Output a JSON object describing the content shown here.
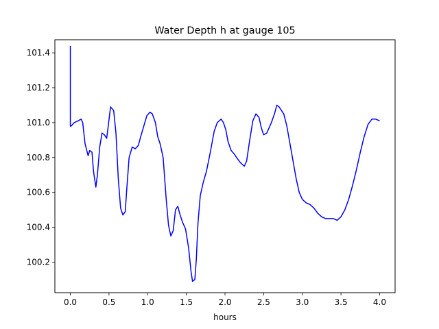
{
  "chart_data": {
    "type": "line",
    "title": "Water Depth h at gauge 105",
    "xlabel": "hours",
    "ylabel": "",
    "xlim": [
      -0.2,
      4.2
    ],
    "ylim": [
      100.025,
      101.475
    ],
    "x_ticks": [
      0.0,
      0.5,
      1.0,
      1.5,
      2.0,
      2.5,
      3.0,
      3.5,
      4.0
    ],
    "x_tick_labels": [
      "0.0",
      "0.5",
      "1.0",
      "1.5",
      "2.0",
      "2.5",
      "3.0",
      "3.5",
      "4.0"
    ],
    "y_ticks": [
      100.2,
      100.4,
      100.6,
      100.8,
      101.0,
      101.2,
      101.4
    ],
    "y_tick_labels": [
      "100.2",
      "100.4",
      "100.6",
      "100.8",
      "101.0",
      "101.2",
      "101.4"
    ],
    "grid": false,
    "series": [
      {
        "color": "#0000ff",
        "x": [
          0.0,
          0.0,
          0.01,
          0.05,
          0.1,
          0.14,
          0.16,
          0.19,
          0.23,
          0.25,
          0.28,
          0.3,
          0.33,
          0.35,
          0.38,
          0.41,
          0.44,
          0.47,
          0.49,
          0.52,
          0.56,
          0.59,
          0.62,
          0.65,
          0.68,
          0.71,
          0.73,
          0.76,
          0.8,
          0.84,
          0.88,
          0.91,
          0.95,
          0.99,
          1.03,
          1.06,
          1.1,
          1.13,
          1.16,
          1.2,
          1.24,
          1.27,
          1.3,
          1.33,
          1.36,
          1.39,
          1.42,
          1.45,
          1.49,
          1.53,
          1.56,
          1.58,
          1.61,
          1.63,
          1.65,
          1.68,
          1.72,
          1.76,
          1.81,
          1.86,
          1.9,
          1.95,
          1.98,
          2.01,
          2.04,
          2.08,
          2.12,
          2.15,
          2.2,
          2.25,
          2.28,
          2.32,
          2.36,
          2.4,
          2.44,
          2.47,
          2.5,
          2.54,
          2.57,
          2.6,
          2.64,
          2.67,
          2.7,
          2.73,
          2.76,
          2.8,
          2.84,
          2.88,
          2.92,
          2.96,
          3.0,
          3.05,
          3.1,
          3.15,
          3.2,
          3.25,
          3.3,
          3.35,
          3.4,
          3.45,
          3.5,
          3.55,
          3.6,
          3.65,
          3.7,
          3.75,
          3.8,
          3.85,
          3.9,
          3.95,
          4.0
        ],
        "y": [
          101.44,
          100.98,
          100.98,
          101.0,
          101.01,
          101.02,
          101.0,
          100.88,
          100.81,
          100.84,
          100.83,
          100.72,
          100.63,
          100.7,
          100.86,
          100.94,
          100.93,
          100.91,
          100.98,
          101.09,
          101.07,
          100.94,
          100.68,
          100.51,
          100.47,
          100.49,
          100.62,
          100.8,
          100.86,
          100.85,
          100.87,
          100.92,
          100.98,
          101.04,
          101.06,
          101.05,
          101.0,
          100.92,
          100.88,
          100.8,
          100.56,
          100.41,
          100.35,
          100.38,
          100.5,
          100.52,
          100.47,
          100.43,
          100.39,
          100.28,
          100.15,
          100.09,
          100.1,
          100.22,
          100.42,
          100.58,
          100.66,
          100.72,
          100.83,
          100.95,
          101.0,
          101.02,
          101.0,
          100.96,
          100.89,
          100.84,
          100.82,
          100.8,
          100.77,
          100.75,
          100.78,
          100.9,
          101.01,
          101.05,
          101.03,
          100.97,
          100.93,
          100.94,
          100.97,
          101.0,
          101.05,
          101.1,
          101.09,
          101.07,
          101.05,
          100.98,
          100.88,
          100.78,
          100.68,
          100.6,
          100.56,
          100.54,
          100.53,
          100.51,
          100.48,
          100.46,
          100.45,
          100.45,
          100.45,
          100.44,
          100.46,
          100.5,
          100.56,
          100.64,
          100.73,
          100.83,
          100.92,
          100.99,
          101.02,
          101.02,
          101.01
        ]
      }
    ]
  }
}
